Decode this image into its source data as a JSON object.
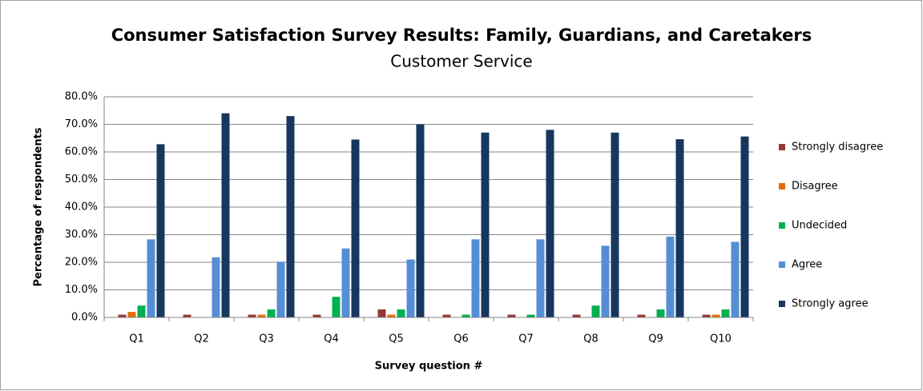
{
  "chart_data": {
    "type": "bar",
    "title": "Consumer Satisfaction Survey Results: Family, Guardians, and Caretakers",
    "subtitle": "Customer Service",
    "x_label": "Survey question #",
    "y_label": "Percentage of respondents",
    "categories": [
      "Q1",
      "Q2",
      "Q3",
      "Q4",
      "Q5",
      "Q6",
      "Q7",
      "Q8",
      "Q9",
      "Q10"
    ],
    "series": [
      {
        "name": "Strongly disagree",
        "color": "#953735",
        "values": [
          1,
          1,
          1,
          1,
          2.9,
          1,
          1,
          1,
          1,
          1
        ]
      },
      {
        "name": "Disagree",
        "color": "#e46c0a",
        "values": [
          2,
          0,
          1,
          0,
          1,
          0,
          0,
          0,
          0,
          1
        ]
      },
      {
        "name": "Undecided",
        "color": "#00b050",
        "values": [
          4.3,
          0,
          2.9,
          7.5,
          2.9,
          1,
          1,
          4.3,
          2.9,
          2.9
        ]
      },
      {
        "name": "Agree",
        "color": "#558ed5",
        "values": [
          28.3,
          21.8,
          20.2,
          25,
          21,
          28.3,
          28.3,
          26,
          29.3,
          27.4
        ]
      },
      {
        "name": "Strongly agree",
        "color": "#17375e",
        "values": [
          62.8,
          74,
          73,
          64.5,
          70,
          67,
          68,
          67,
          64.6,
          65.6
        ]
      }
    ],
    "ylim": [
      0,
      80
    ],
    "yticks": [
      {
        "value": 0,
        "label": "0.0%"
      },
      {
        "value": 10,
        "label": "10.0%"
      },
      {
        "value": 20,
        "label": "20.0%"
      },
      {
        "value": 30,
        "label": "30.0%"
      },
      {
        "value": 40,
        "label": "40.0%"
      },
      {
        "value": 50,
        "label": "50.0%"
      },
      {
        "value": 60,
        "label": "60.0%"
      },
      {
        "value": 70,
        "label": "70.0%"
      },
      {
        "value": 80,
        "label": "80.0%"
      }
    ],
    "grid": true,
    "legend": "right"
  }
}
